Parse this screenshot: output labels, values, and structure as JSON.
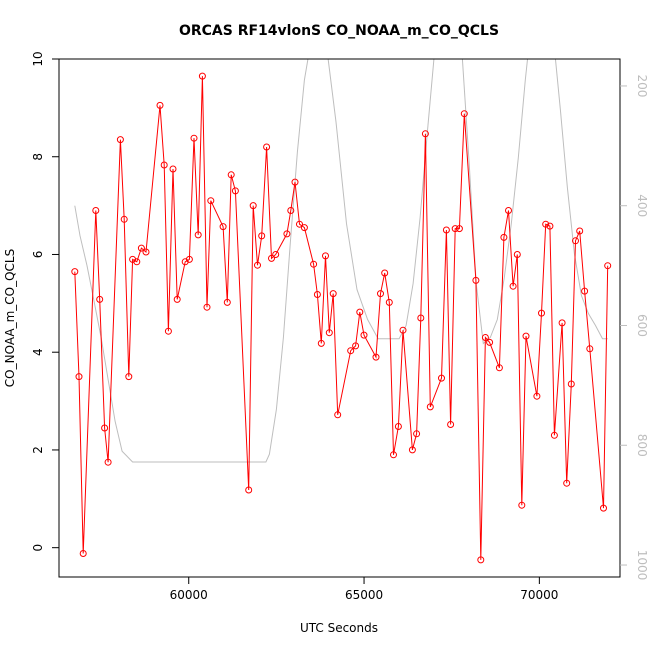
{
  "chart_data": {
    "type": "line",
    "title": "ORCAS RF14vlonS CO_NOAA_m_CO_QCLS",
    "xlabel": "UTC Seconds",
    "ylabel": "CO_NOAA_m_CO_QCLS",
    "xlim": [
      56300,
      72300
    ],
    "ylim": [
      -0.6,
      10
    ],
    "xticks": [
      60000,
      65000,
      70000
    ],
    "yticks": [
      0,
      2,
      4,
      6,
      8,
      10
    ],
    "y2lim": [
      1020,
      155
    ],
    "y2ticks": [
      200,
      400,
      600,
      800,
      1000
    ],
    "grid": false,
    "series": [
      {
        "color": "#ff0000",
        "marker": "open-circle",
        "x": [
          56750,
          56870,
          56990,
          57350,
          57460,
          57600,
          57700,
          58050,
          58160,
          58290,
          58400,
          58520,
          58650,
          58780,
          59180,
          59300,
          59420,
          59550,
          59670,
          59900,
          60020,
          60150,
          60270,
          60390,
          60520,
          60630,
          60980,
          61100,
          61210,
          61330,
          61710,
          61840,
          61960,
          62080,
          62220,
          62360,
          62480,
          62800,
          62910,
          63030,
          63160,
          63300,
          63560,
          63670,
          63780,
          63900,
          64010,
          64120,
          64250,
          64620,
          64760,
          64880,
          65000,
          65340,
          65470,
          65590,
          65720,
          65840,
          65980,
          66110,
          66380,
          66500,
          66620,
          66750,
          66890,
          67210,
          67350,
          67470,
          67600,
          67720,
          67860,
          68190,
          68330,
          68460,
          68580,
          68860,
          68990,
          69120,
          69250,
          69370,
          69500,
          69620,
          69930,
          70060,
          70180,
          70300,
          70430,
          70650,
          70780,
          70910,
          71030,
          71150,
          71290,
          71440,
          71830,
          71950
        ],
        "values": [
          5.65,
          3.5,
          -0.12,
          6.9,
          5.08,
          2.45,
          1.75,
          8.35,
          6.72,
          3.5,
          5.9,
          5.85,
          6.13,
          6.05,
          9.05,
          7.83,
          4.43,
          7.75,
          5.08,
          5.85,
          5.9,
          8.38,
          6.4,
          9.65,
          4.92,
          7.1,
          6.57,
          5.02,
          7.63,
          7.3,
          1.18,
          7.0,
          5.78,
          6.38,
          8.2,
          5.92,
          6.0,
          6.42,
          6.9,
          7.48,
          6.62,
          6.55,
          5.8,
          5.18,
          4.18,
          5.97,
          4.4,
          5.2,
          2.72,
          4.03,
          4.13,
          4.82,
          4.35,
          3.9,
          5.2,
          5.62,
          5.02,
          1.9,
          2.48,
          4.45,
          2.0,
          2.33,
          4.7,
          8.47,
          2.88,
          3.47,
          6.5,
          2.52,
          6.53,
          6.53,
          8.88,
          5.47,
          -0.25,
          4.3,
          4.2,
          3.68,
          6.35,
          6.9,
          5.35,
          6.0,
          0.87,
          4.33,
          3.1,
          4.8,
          6.62,
          6.58,
          2.3,
          4.6,
          1.32,
          3.35,
          6.28,
          6.48,
          5.25,
          4.07,
          0.81,
          5.77
        ]
      },
      {
        "color": "#bebebe",
        "axis": "right",
        "x": [
          56750,
          56900,
          57100,
          57300,
          57500,
          57700,
          57900,
          58100,
          58400,
          58800,
          59500,
          60500,
          61500,
          62200,
          62300,
          62500,
          62700,
          62900,
          63100,
          63300,
          63500,
          63700,
          63900,
          64200,
          64500,
          64800,
          65100,
          65400,
          65700,
          66000,
          66200,
          66400,
          66600,
          66800,
          67000,
          67200,
          67400,
          67600,
          67800,
          68000,
          68200,
          68400,
          68600,
          68800,
          69000,
          69200,
          69400,
          69600,
          69800,
          70000,
          70200,
          70400,
          70600,
          70800,
          71000,
          71200,
          71400,
          71600,
          71800,
          71950
        ],
        "values": [
          400,
          450,
          500,
          560,
          620,
          690,
          760,
          810,
          828,
          828,
          828,
          828,
          828,
          828,
          815,
          740,
          620,
          460,
          310,
          190,
          120,
          100,
          120,
          260,
          430,
          540,
          590,
          622,
          622,
          622,
          600,
          530,
          420,
          280,
          150,
          60,
          30,
          60,
          150,
          330,
          530,
          630,
          620,
          590,
          520,
          430,
          320,
          190,
          80,
          0,
          30,
          120,
          240,
          370,
          480,
          550,
          580,
          600,
          622,
          622
        ]
      }
    ]
  }
}
